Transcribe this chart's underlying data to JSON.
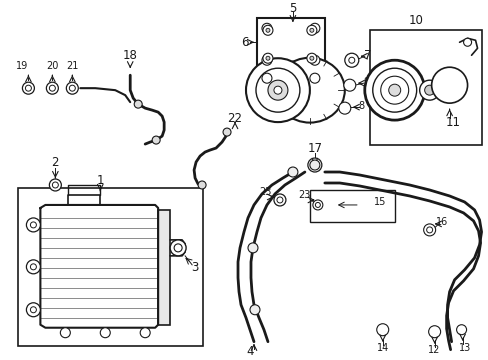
{
  "background_color": "#ffffff",
  "line_color": "#1a1a1a",
  "figsize": [
    4.89,
    3.6
  ],
  "dpi": 100,
  "label_fontsize": 8.5,
  "small_fontsize": 7.0
}
